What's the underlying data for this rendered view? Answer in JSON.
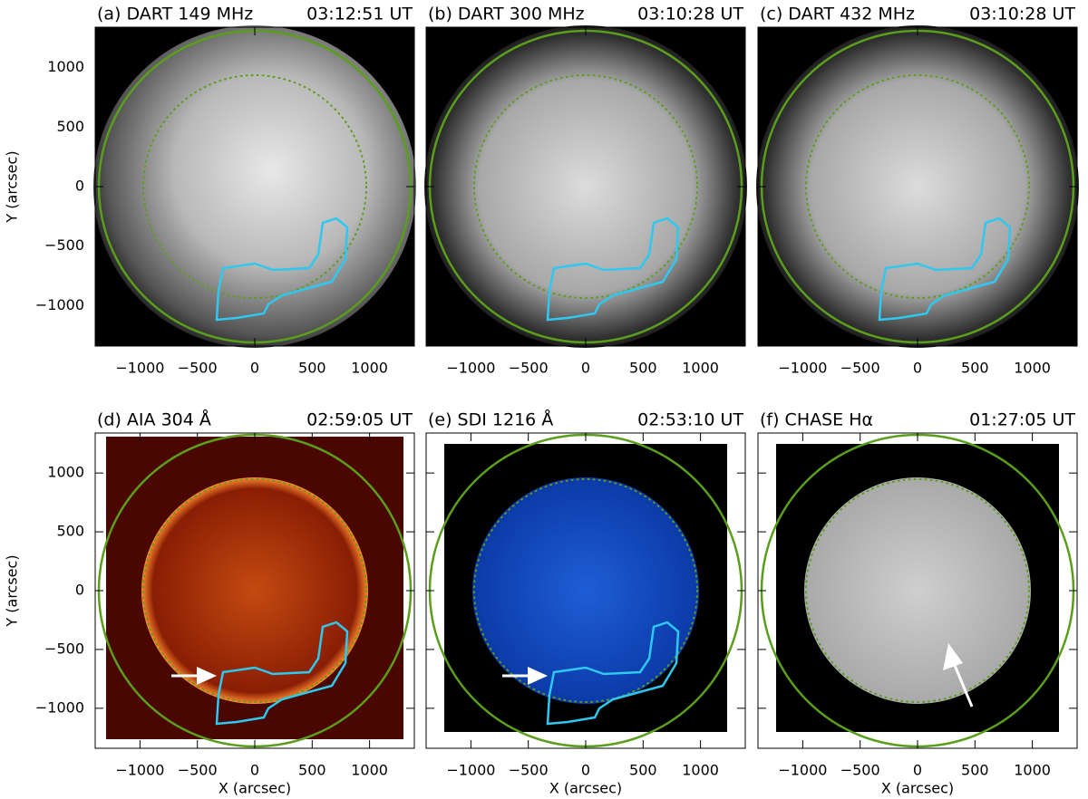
{
  "figure": {
    "panels": [
      {
        "title": "(a) DART 149 MHz",
        "time": "03:12:51 UT"
      },
      {
        "title": "(b) DART 300 MHz",
        "time": "03:10:28 UT"
      },
      {
        "title": "(c) DART 432 MHz",
        "time": "03:10:28 UT"
      },
      {
        "title": "(d) AIA 304 Å",
        "time": "02:59:05 UT"
      },
      {
        "title": "(e) SDI 1216 Å",
        "time": "02:53:10 UT"
      },
      {
        "title": "(f) CHASE Hα",
        "time": "01:27:05 UT"
      }
    ],
    "xlabel": "X (arcsec)",
    "ylabel": "Y (arcsec)",
    "xlim": [
      -1390,
      1390
    ],
    "ylim": [
      -1340,
      1340
    ],
    "xticks": [
      {
        "value": -1000,
        "label": "−1000"
      },
      {
        "value": -500,
        "label": "−500"
      },
      0,
      500,
      1000
    ],
    "yticks": [
      {
        "value": -1000,
        "label": "−1000"
      },
      {
        "value": -500,
        "label": "−500"
      },
      0,
      500,
      1000
    ]
  }
}
